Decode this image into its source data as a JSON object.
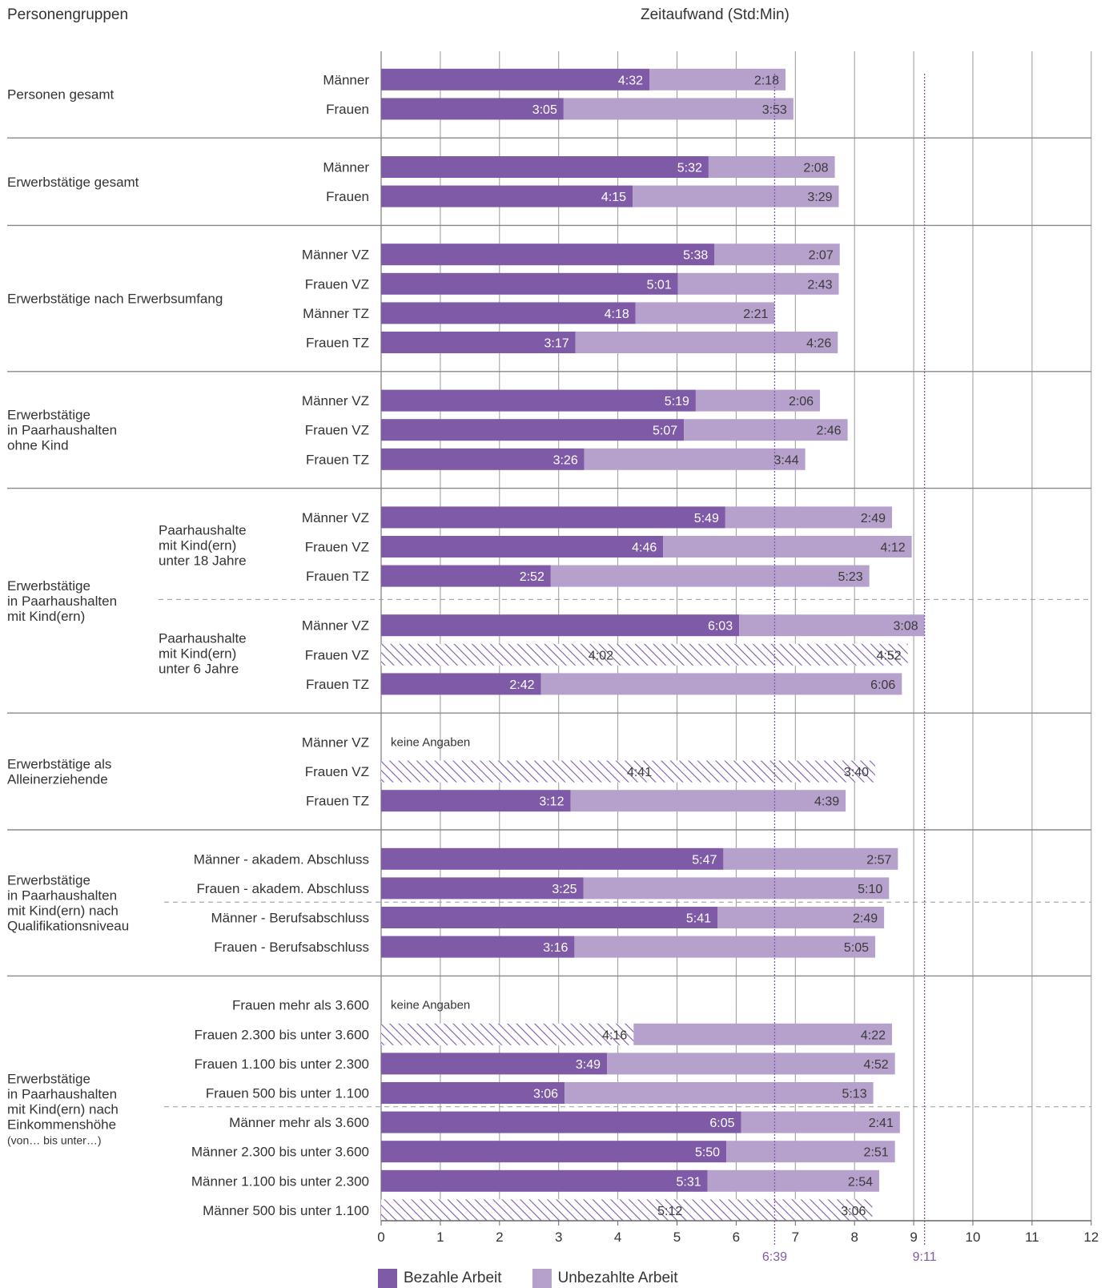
{
  "header": {
    "left_title": "Personengruppen",
    "right_title": "Zeitaufwand (Std:Min)"
  },
  "colors": {
    "paid": "#7f5aa6",
    "unpaid": "#b5a1cc",
    "hatch": "#7f5aa6",
    "grid": "#9a9a9a",
    "ref_line": "#7f5aa6",
    "separator": "#888888"
  },
  "legend": {
    "paid_label": "Bezahle Arbeit",
    "unpaid_label": "Unbezahlte Arbeit"
  },
  "chart_data": {
    "type": "bar",
    "orientation": "horizontal",
    "stacked": true,
    "xlim": [
      0,
      12
    ],
    "x_ticks": [
      "0",
      "1",
      "2",
      "3",
      "4",
      "5",
      "6",
      "7",
      "8",
      "9",
      "10",
      "11",
      "12"
    ],
    "reference_lines": [
      {
        "value": 6.65,
        "label": "6:39"
      },
      {
        "value": 9.1833,
        "label": "9:11"
      }
    ],
    "series": [
      {
        "name": "Bezahle Arbeit",
        "key": "paid"
      },
      {
        "name": "Unbezahlte Arbeit",
        "key": "unpaid"
      }
    ],
    "groups": [
      {
        "label": "Personen gesamt",
        "rows": [
          {
            "label": "Männer",
            "paid": "4:32",
            "unpaid": "2:18"
          },
          {
            "label": "Frauen",
            "paid": "3:05",
            "unpaid": "3:53"
          }
        ]
      },
      {
        "label": "Erwerbstätige gesamt",
        "rows": [
          {
            "label": "Männer",
            "paid": "5:32",
            "unpaid": "2:08"
          },
          {
            "label": "Frauen",
            "paid": "4:15",
            "unpaid": "3:29"
          }
        ]
      },
      {
        "label": "Erwerbstätige nach Erwerbsumfang",
        "rows": [
          {
            "label": "Männer VZ",
            "paid": "5:38",
            "unpaid": "2:07"
          },
          {
            "label": "Frauen VZ",
            "paid": "5:01",
            "unpaid": "2:43"
          },
          {
            "label": "Männer TZ",
            "paid": "4:18",
            "unpaid": "2:21"
          },
          {
            "label": "Frauen TZ",
            "paid": "3:17",
            "unpaid": "4:26"
          }
        ]
      },
      {
        "label": "Erwerbstätige\nin Paarhaushalten\nohne Kind",
        "rows": [
          {
            "label": "Männer VZ",
            "paid": "5:19",
            "unpaid": "2:06"
          },
          {
            "label": "Frauen VZ",
            "paid": "5:07",
            "unpaid": "2:46"
          },
          {
            "label": "Frauen TZ",
            "paid": "3:26",
            "unpaid": "3:44"
          }
        ]
      },
      {
        "label": "Erwerbstätige\nin Paarhaushalten\nmit Kind(ern)",
        "subgroups": [
          {
            "label": "Paarhaushalte\nmit Kind(ern)\nunter 18 Jahre",
            "rows": [
              {
                "label": "Männer VZ",
                "paid": "5:49",
                "unpaid": "2:49"
              },
              {
                "label": "Frauen VZ",
                "paid": "4:46",
                "unpaid": "4:12"
              },
              {
                "label": "Frauen TZ",
                "paid": "2:52",
                "unpaid": "5:23"
              }
            ]
          },
          {
            "label": "Paarhaushalte\nmit Kind(ern)\nunter 6 Jahre",
            "rows": [
              {
                "label": "Männer VZ",
                "paid": "6:03",
                "unpaid": "3:08"
              },
              {
                "label": "Frauen VZ",
                "paid": "4:02",
                "unpaid": "4:52",
                "hatched": "both"
              },
              {
                "label": "Frauen TZ",
                "paid": "2:42",
                "unpaid": "6:06"
              }
            ]
          }
        ]
      },
      {
        "label": "Erwerbstätige als\nAlleinerziehende",
        "rows": [
          {
            "label": "Männer VZ",
            "note": "keine Angaben"
          },
          {
            "label": "Frauen VZ",
            "paid": "4:41",
            "unpaid": "3:40",
            "hatched": "both"
          },
          {
            "label": "Frauen TZ",
            "paid": "3:12",
            "unpaid": "4:39"
          }
        ]
      },
      {
        "label": "Erwerbstätige\nin Paarhaushalten\nmit Kind(ern) nach\nQualifikationsniveau",
        "dashed_after": 1,
        "rows": [
          {
            "label": "Männer - akadem. Abschluss",
            "paid": "5:47",
            "unpaid": "2:57"
          },
          {
            "label": "Frauen  - akadem. Abschluss",
            "paid": "3:25",
            "unpaid": "5:10"
          },
          {
            "label": "Männer - Berufsabschluss",
            "paid": "5:41",
            "unpaid": "2:49"
          },
          {
            "label": "Frauen - Berufsabschluss",
            "paid": "3:16",
            "unpaid": "5:05"
          }
        ]
      },
      {
        "label": "Erwerbstätige\nin Paarhaushalten\nmit Kind(ern) nach\nEinkommenshöhe",
        "sublabel": "(von… bis unter…)",
        "dashed_after": 3,
        "rows": [
          {
            "label": "Frauen mehr als 3.600",
            "note": "keine Angaben"
          },
          {
            "label": "Frauen 2.300 bis unter 3.600",
            "paid": "4:16",
            "unpaid": "4:22",
            "hatched": "paid"
          },
          {
            "label": "Frauen 1.100 bis unter 2.300",
            "paid": "3:49",
            "unpaid": "4:52"
          },
          {
            "label": "Frauen 500 bis unter 1.100",
            "paid": "3:06",
            "unpaid": "5:13"
          },
          {
            "label": "Männer mehr als 3.600",
            "paid": "6:05",
            "unpaid": "2:41"
          },
          {
            "label": "Männer 2.300 bis unter 3.600",
            "paid": "5:50",
            "unpaid": "2:51"
          },
          {
            "label": "Männer 1.100 bis unter 2.300",
            "paid": "5:31",
            "unpaid": "2:54"
          },
          {
            "label": "Männer 500 bis unter 1.100",
            "paid": "5:12",
            "unpaid": "3:06",
            "hatched": "both"
          }
        ]
      }
    ]
  }
}
